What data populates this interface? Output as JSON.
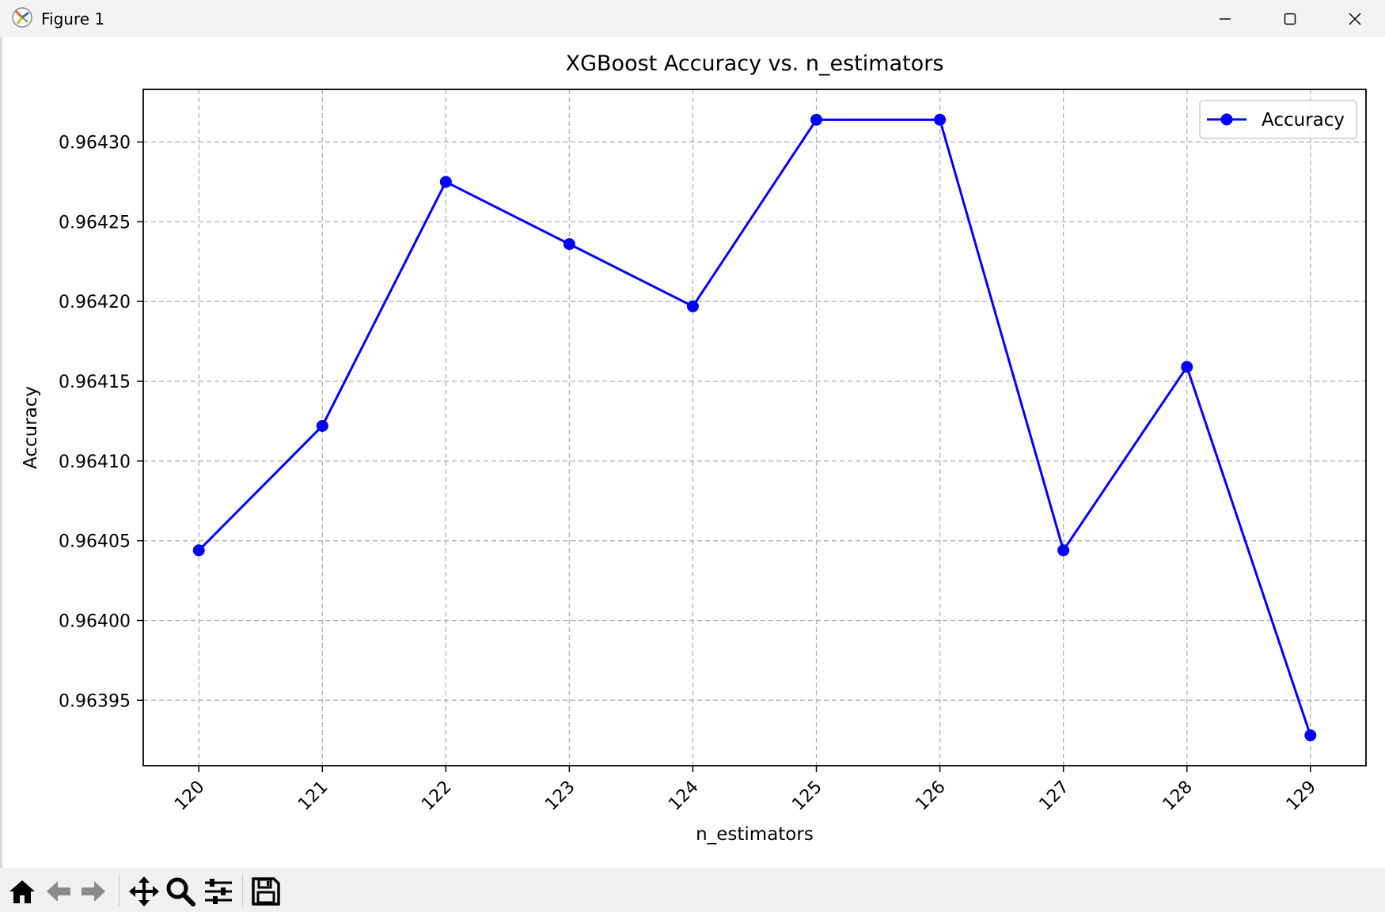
{
  "window": {
    "title": "Figure 1",
    "icon": "matplotlib-icon",
    "controls": [
      "minimize-icon",
      "maximize-icon",
      "close-icon"
    ]
  },
  "toolbar": {
    "tools": [
      "home-icon",
      "back-arrow-icon",
      "forward-arrow-icon",
      "pan-icon",
      "zoom-icon",
      "configure-subplots-icon",
      "save-icon"
    ]
  },
  "chart_data": {
    "type": "line",
    "title": "XGBoost Accuracy vs. n_estimators",
    "xlabel": "n_estimators",
    "ylabel": "Accuracy",
    "x": [
      120,
      121,
      122,
      123,
      124,
      125,
      126,
      127,
      128,
      129
    ],
    "series": [
      {
        "name": "Accuracy",
        "color": "#0000ff",
        "marker": "circle",
        "values": [
          0.964044,
          0.964122,
          0.964275,
          0.964236,
          0.964197,
          0.964314,
          0.964314,
          0.964044,
          0.964159,
          0.963928
        ]
      }
    ],
    "xticks": [
      "120",
      "121",
      "122",
      "123",
      "124",
      "125",
      "126",
      "127",
      "128",
      "129"
    ],
    "yticks": [
      "0.96395",
      "0.96400",
      "0.96405",
      "0.96410",
      "0.96415",
      "0.96420",
      "0.96425",
      "0.96430"
    ],
    "ytick_values": [
      0.96395,
      0.964,
      0.96405,
      0.9641,
      0.96415,
      0.9642,
      0.96425,
      0.9643
    ],
    "xlim": [
      119.55,
      129.45
    ],
    "ylim": [
      0.963909,
      0.964333
    ],
    "grid": true,
    "legend_position": "top-right"
  }
}
